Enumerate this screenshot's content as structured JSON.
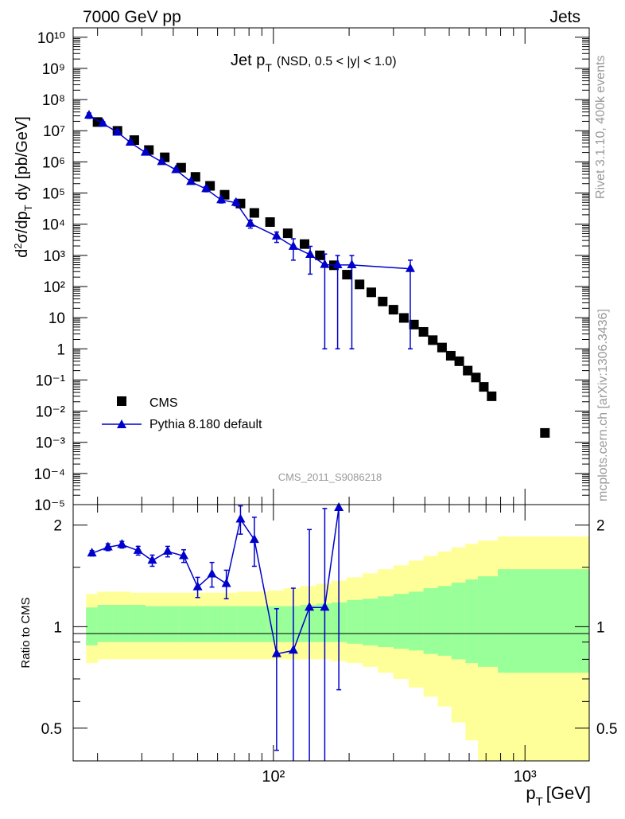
{
  "header": {
    "left_label": "7000 GeV pp",
    "right_label": "Jets"
  },
  "side_labels": {
    "rivet": "Rivet 3.1.10,  400k events",
    "mcplots": "mcplots.cern.ch [arXiv:1306.3436]"
  },
  "chart_data": {
    "type": "scatter",
    "title": "Jet p_T",
    "title_parts": {
      "main": "Jet p",
      "sub": "T",
      "extra": "(NSD, 0.5 < |y| < 1.0)"
    },
    "analysis_id": "CMS_2011_S9086218",
    "xlabel": "p_T [GeV]",
    "xlabel_parts": {
      "main": "p",
      "sub": "T",
      "unit": "[GeV]"
    },
    "ylabel": "d²σ/dp_T dy [pb/GeV]",
    "ratio_ylabel": "Ratio to CMS",
    "xscale": "log",
    "xlim": [
      16,
      1800
    ],
    "ylim": [
      1e-05,
      20000000000.0
    ],
    "ratio_ylim": [
      0.4,
      2.3
    ],
    "x_tick_labels": [
      "10²",
      "10³"
    ],
    "y_tick_labels": [
      "10¹⁰",
      "10⁹",
      "10⁸",
      "10⁷",
      "10⁶",
      "10⁵",
      "10⁴",
      "10³",
      "10²",
      "10",
      "1",
      "10⁻¹",
      "10⁻²",
      "10⁻³",
      "10⁻⁴",
      "10⁻⁵"
    ],
    "ratio_tick_labels": [
      "2",
      "1",
      "0.5"
    ],
    "legend_placement": "lower-left",
    "series": [
      {
        "name": "CMS",
        "marker": "square",
        "color": "#000000",
        "x": [
          20,
          24,
          28,
          32,
          37,
          43,
          49,
          56,
          64,
          74,
          84,
          97,
          114,
          133,
          153,
          174,
          196,
          220,
          245,
          272,
          300,
          330,
          362,
          395,
          430,
          468,
          507,
          548,
          592,
          638,
          686,
          737,
          1200
        ],
        "y": [
          19000000.0,
          9900000.0,
          5000000.0,
          2400000.0,
          1400000.0,
          650000.0,
          330000.0,
          170000.0,
          88000.0,
          46000.0,
          23000.0,
          11700.0,
          5100.0,
          2300.0,
          1000.0,
          480.0,
          240.0,
          117.0,
          65,
          33,
          18,
          9.8,
          6.0,
          3.5,
          1.9,
          1.1,
          0.6,
          0.4,
          0.2,
          0.12,
          0.06,
          0.03,
          0.002
        ]
      },
      {
        "name": "Pythia 8.180 default",
        "marker": "triangle",
        "color": "#0000cc",
        "x": [
          18.5,
          21,
          24,
          27,
          31,
          36,
          41,
          47,
          54,
          62,
          71,
          81,
          103,
          120,
          140,
          160,
          180,
          205,
          350
        ],
        "y": [
          31000000.0,
          17000000.0,
          8900000.0,
          4200000.0,
          2000000.0,
          1000000.0,
          550000.0,
          230000.0,
          135000.0,
          60000.0,
          49000.0,
          10500.0,
          4100.0,
          1900.0,
          1050.0,
          500.0,
          490.0,
          490.0,
          370.0
        ],
        "y_err_lo": [
          6000000.0,
          2500000.0,
          1200000.0,
          500000.0,
          300000.0,
          150000.0,
          80000.0,
          35000.0,
          25000.0,
          12000.0,
          10000.0,
          3000.0,
          1500.0,
          1200.0,
          800.0,
          499.0,
          489.0,
          489.0,
          369.0
        ],
        "y_err_hi": [
          6000000.0,
          2500000.0,
          1200000.0,
          500000.0,
          300000.0,
          150000.0,
          80000.0,
          35000.0,
          25000.0,
          12000.0,
          10000.0,
          3000.0,
          1500.0,
          1500.0,
          900.0,
          600.0,
          500.0,
          500.0,
          330.0
        ]
      }
    ],
    "ratio_series": {
      "name": "Pythia 8.180 default / CMS",
      "x": [
        19,
        22,
        25,
        29,
        33,
        38,
        44,
        50,
        57,
        65,
        74,
        84,
        103,
        120,
        139,
        160,
        182
      ],
      "y": [
        1.65,
        1.72,
        1.75,
        1.68,
        1.57,
        1.67,
        1.62,
        1.31,
        1.43,
        1.34,
        2.08,
        1.81,
        0.83,
        0.85,
        1.14,
        1.14,
        2.25
      ],
      "y_err_lo": [
        0.03,
        0.04,
        0.04,
        0.05,
        0.06,
        0.06,
        0.07,
        0.09,
        0.12,
        0.13,
        0.2,
        0.3,
        0.4,
        0.46,
        0.76,
        0.76,
        1.6
      ],
      "y_err_hi": [
        0.03,
        0.04,
        0.04,
        0.05,
        0.06,
        0.06,
        0.07,
        0.09,
        0.12,
        0.13,
        0.2,
        0.3,
        0.3,
        0.45,
        0.8,
        1.1,
        0.05
      ]
    },
    "uncertainty_bands": {
      "x_edges": [
        18,
        20,
        23,
        27,
        31,
        36,
        42,
        48,
        55,
        63,
        72,
        82,
        95,
        110,
        128,
        148,
        170,
        196,
        226,
        260,
        300,
        345,
        395,
        450,
        510,
        580,
        650,
        780,
        1800
      ],
      "inner_lo": [
        0.88,
        0.9,
        0.9,
        0.9,
        0.9,
        0.9,
        0.9,
        0.9,
        0.9,
        0.9,
        0.9,
        0.9,
        0.9,
        0.9,
        0.9,
        0.9,
        0.9,
        0.89,
        0.88,
        0.87,
        0.86,
        0.85,
        0.83,
        0.82,
        0.8,
        0.78,
        0.76,
        0.73
      ],
      "inner_hi": [
        1.14,
        1.16,
        1.16,
        1.16,
        1.15,
        1.15,
        1.15,
        1.15,
        1.15,
        1.15,
        1.15,
        1.15,
        1.15,
        1.15,
        1.16,
        1.17,
        1.18,
        1.2,
        1.21,
        1.23,
        1.25,
        1.27,
        1.3,
        1.32,
        1.35,
        1.38,
        1.41,
        1.48
      ],
      "outer_lo": [
        0.78,
        0.8,
        0.8,
        0.8,
        0.8,
        0.8,
        0.8,
        0.8,
        0.8,
        0.8,
        0.8,
        0.8,
        0.8,
        0.8,
        0.8,
        0.8,
        0.79,
        0.78,
        0.76,
        0.73,
        0.7,
        0.66,
        0.62,
        0.58,
        0.52,
        0.46,
        0.4,
        0.35
      ],
      "outer_hi": [
        1.25,
        1.27,
        1.27,
        1.26,
        1.26,
        1.26,
        1.26,
        1.26,
        1.26,
        1.26,
        1.27,
        1.27,
        1.28,
        1.3,
        1.32,
        1.34,
        1.37,
        1.4,
        1.44,
        1.48,
        1.52,
        1.57,
        1.62,
        1.67,
        1.72,
        1.76,
        1.8,
        1.85
      ],
      "inner_color": "#99ff99",
      "outer_color": "#ffff99"
    }
  }
}
